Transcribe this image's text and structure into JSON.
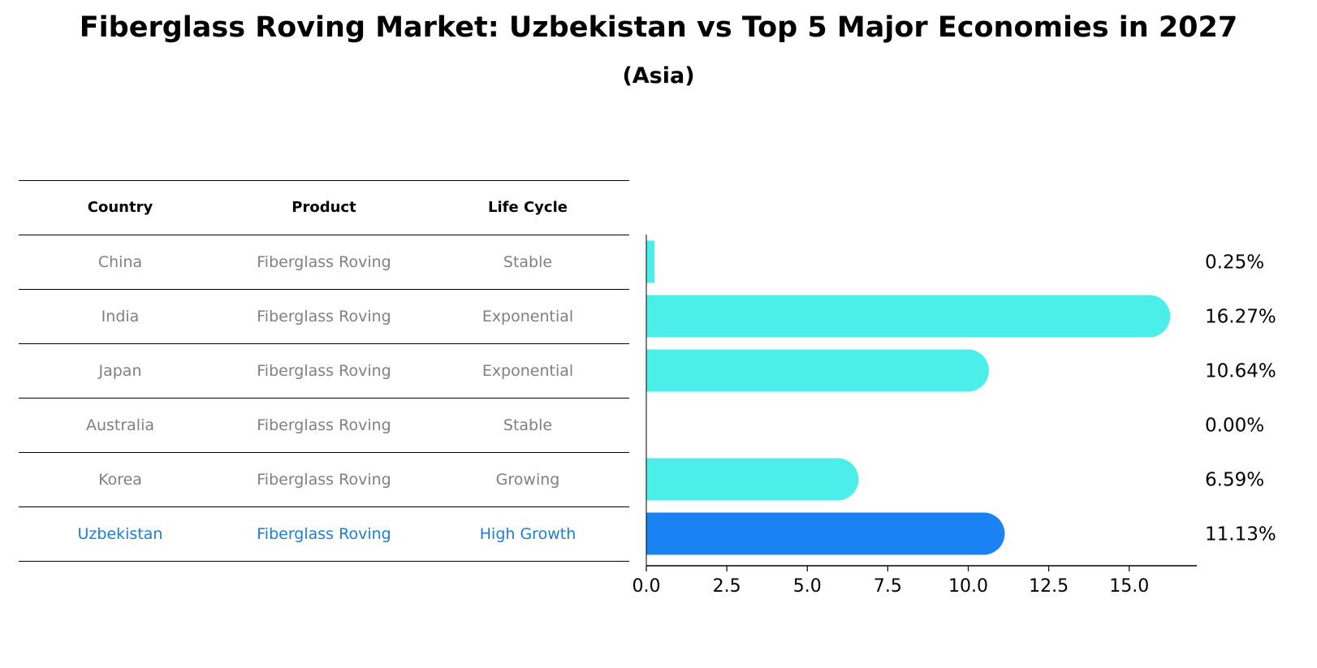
{
  "title": "Fiberglass Roving Market: Uzbekistan vs Top 5 Major Economies in 2027",
  "subtitle": "(Asia)",
  "colors": {
    "bar": "#4ceeea",
    "highlight": "#1a82f2",
    "highlight_text": "#1a7fd9",
    "muted_text": "#808080"
  },
  "table": {
    "headers": [
      "Country",
      "Product",
      "Life Cycle"
    ],
    "rows": [
      [
        "China",
        "Fiberglass Roving",
        "Stable"
      ],
      [
        "India",
        "Fiberglass Roving",
        "Exponential"
      ],
      [
        "Japan",
        "Fiberglass Roving",
        "Exponential"
      ],
      [
        "Australia",
        "Fiberglass Roving",
        "Stable"
      ],
      [
        "Korea",
        "Fiberglass Roving",
        "Growing"
      ],
      [
        "Uzbekistan",
        "Fiberglass Roving",
        "High Growth"
      ]
    ],
    "highlight_row": "Uzbekistan"
  },
  "chart_data": {
    "type": "bar",
    "orientation": "horizontal",
    "categories": [
      "China",
      "India",
      "Japan",
      "Australia",
      "Korea",
      "Uzbekistan"
    ],
    "values": [
      0.25,
      16.27,
      10.64,
      0.0,
      6.59,
      11.13
    ],
    "value_labels": [
      "0.25%",
      "16.27%",
      "10.64%",
      "0.00%",
      "6.59%",
      "11.13%"
    ],
    "highlight": "Uzbekistan",
    "xlim": [
      0,
      17.1
    ],
    "xticks": [
      0.0,
      2.5,
      5.0,
      7.5,
      10.0,
      12.5,
      15.0
    ],
    "xtick_labels": [
      "0.0",
      "2.5",
      "5.0",
      "7.5",
      "10.0",
      "12.5",
      "15.0"
    ],
    "grid": false
  }
}
